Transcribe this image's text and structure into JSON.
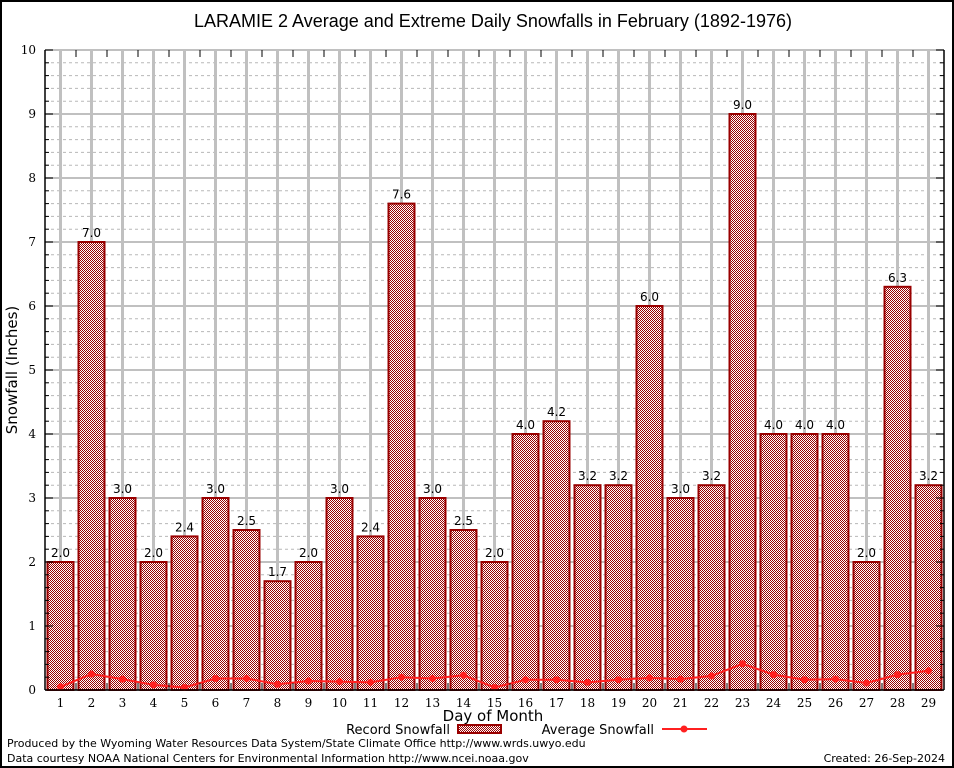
{
  "chart_data": {
    "type": "bar",
    "title": "LARAMIE 2 Average and Extreme Daily Snowfalls in February (1892-1976)",
    "xlabel": "Day of Month",
    "ylabel": "Snowfall (Inches)",
    "ylim": [
      0,
      10
    ],
    "yticks": [
      "0",
      "1",
      "2",
      "3",
      "4",
      "5",
      "6",
      "7",
      "8",
      "9",
      "10"
    ],
    "grid": true,
    "categories": [
      "1",
      "2",
      "3",
      "4",
      "5",
      "6",
      "7",
      "8",
      "9",
      "10",
      "11",
      "12",
      "13",
      "14",
      "15",
      "16",
      "17",
      "18",
      "19",
      "20",
      "21",
      "22",
      "23",
      "24",
      "25",
      "26",
      "27",
      "28",
      "29"
    ],
    "series": [
      {
        "name": "Record Snowfall",
        "type": "bar",
        "color": "#990000",
        "values": [
          2.0,
          7.0,
          3.0,
          2.0,
          2.4,
          3.0,
          2.5,
          1.7,
          2.0,
          3.0,
          2.4,
          7.6,
          3.0,
          2.5,
          2.0,
          4.0,
          4.2,
          3.2,
          3.2,
          6.0,
          3.0,
          3.2,
          9.0,
          4.0,
          4.0,
          4.0,
          2.0,
          6.3,
          3.2
        ],
        "labels": [
          "2.0",
          "7.0",
          "3.0",
          "2.0",
          "2.4",
          "3.0",
          "2.5",
          "1.7",
          "2.0",
          "3.0",
          "2.4",
          "7.6",
          "3.0",
          "2.5",
          "2.0",
          "4.0",
          "4.2",
          "3.2",
          "3.2",
          "6.0",
          "3.0",
          "3.2",
          "9.0",
          "4.0",
          "4.0",
          "4.0",
          "2.0",
          "6.3",
          "3.2"
        ]
      },
      {
        "name": "Average Snowfall",
        "type": "line",
        "color": "#ff2020",
        "values": [
          0.05,
          0.25,
          0.17,
          0.08,
          0.04,
          0.18,
          0.18,
          0.09,
          0.14,
          0.13,
          0.12,
          0.2,
          0.18,
          0.23,
          0.04,
          0.16,
          0.16,
          0.12,
          0.16,
          0.19,
          0.17,
          0.22,
          0.41,
          0.24,
          0.16,
          0.17,
          0.11,
          0.24,
          0.3
        ]
      }
    ],
    "legend": {
      "placement": "bottom",
      "items": [
        "Record Snowfall",
        "Average Snowfall"
      ]
    }
  },
  "footer": {
    "produced_by": "Produced by the Wyoming Water Resources Data System/State Climate Office http://www.wrds.uwyo.edu",
    "data_courtesy": "Data courtesy NOAA National Centers for Environmental Information http://www.ncei.noaa.gov",
    "created": "Created: 26-Sep-2024"
  }
}
